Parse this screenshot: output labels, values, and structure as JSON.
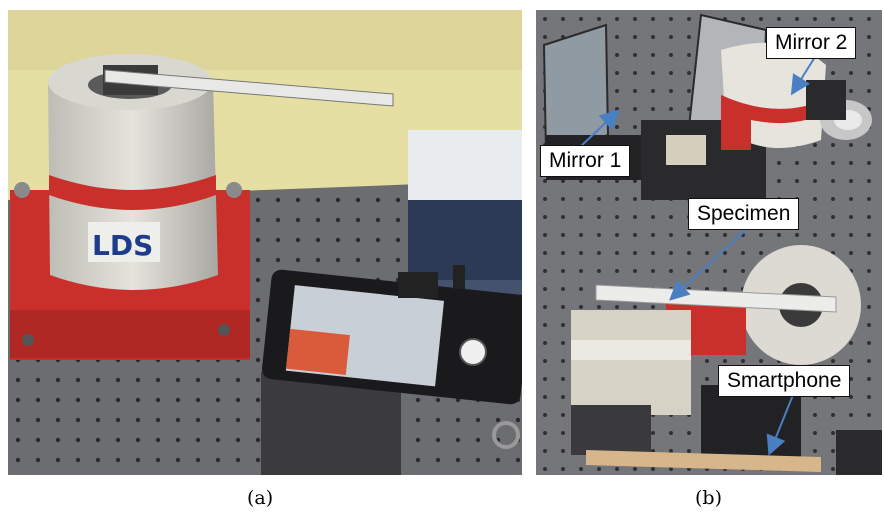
{
  "captions": {
    "a": "(a)",
    "b": "(b)"
  },
  "labels": {
    "mirror2": "Mirror 2",
    "mirror1": "Mirror 1",
    "specimen": "Specimen",
    "smartphone": "Smartphone"
  },
  "brand": "LDS",
  "colors": {
    "arrow": "#4a7fc1",
    "shaker_red": "#c9302c",
    "table": "#6f7073"
  }
}
